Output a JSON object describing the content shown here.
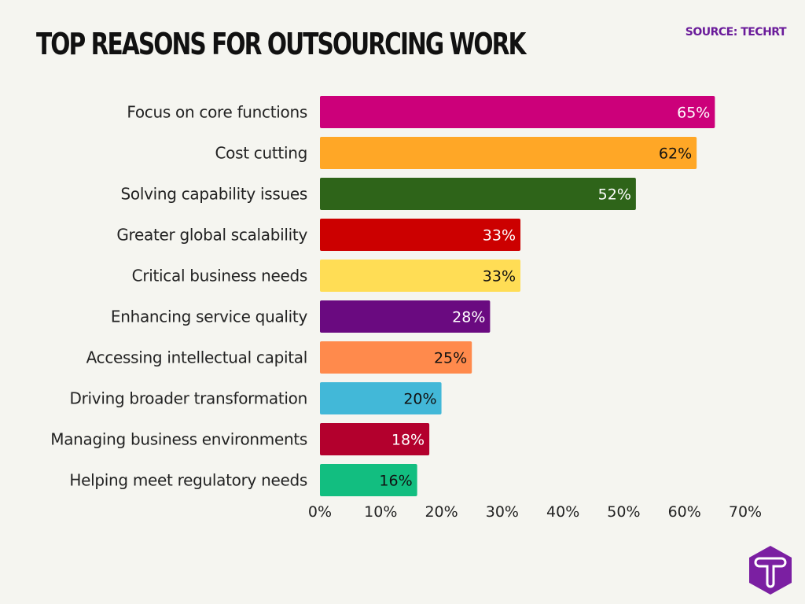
{
  "chart_data": {
    "type": "bar",
    "orientation": "horizontal",
    "title": "TOP REASONS FOR OUTSOURCING WORK",
    "source": "SOURCE: TECHRT",
    "categories": [
      "Focus on core functions",
      "Cost cutting",
      "Solving capability issues",
      "Greater global scalability",
      "Critical business needs",
      "Enhancing service quality",
      "Accessing intellectual capital",
      "Driving broader transformation",
      "Managing business environments",
      "Helping meet regulatory needs"
    ],
    "values": [
      65,
      62,
      52,
      33,
      33,
      28,
      25,
      20,
      18,
      16
    ],
    "data_labels": [
      "65%",
      "62%",
      "52%",
      "33%",
      "33%",
      "28%",
      "25%",
      "20%",
      "18%",
      "16%"
    ],
    "colors": [
      "#cc007a",
      "#ffa726",
      "#2e6419",
      "#cc0000",
      "#ffdd55",
      "#6a0a80",
      "#ff8a4c",
      "#42b8d8",
      "#b3002d",
      "#12be80"
    ],
    "label_colors": [
      "#ffffff",
      "#111111",
      "#ffffff",
      "#ffffff",
      "#111111",
      "#ffffff",
      "#111111",
      "#111111",
      "#ffffff",
      "#111111"
    ],
    "xlim": [
      0,
      70
    ],
    "xticks": [
      "0%",
      "10%",
      "20%",
      "30%",
      "40%",
      "50%",
      "60%",
      "70%"
    ],
    "grid": false,
    "xlabel": "",
    "ylabel": ""
  },
  "logo": {
    "letter": "T",
    "color": "#7b1fa2"
  }
}
